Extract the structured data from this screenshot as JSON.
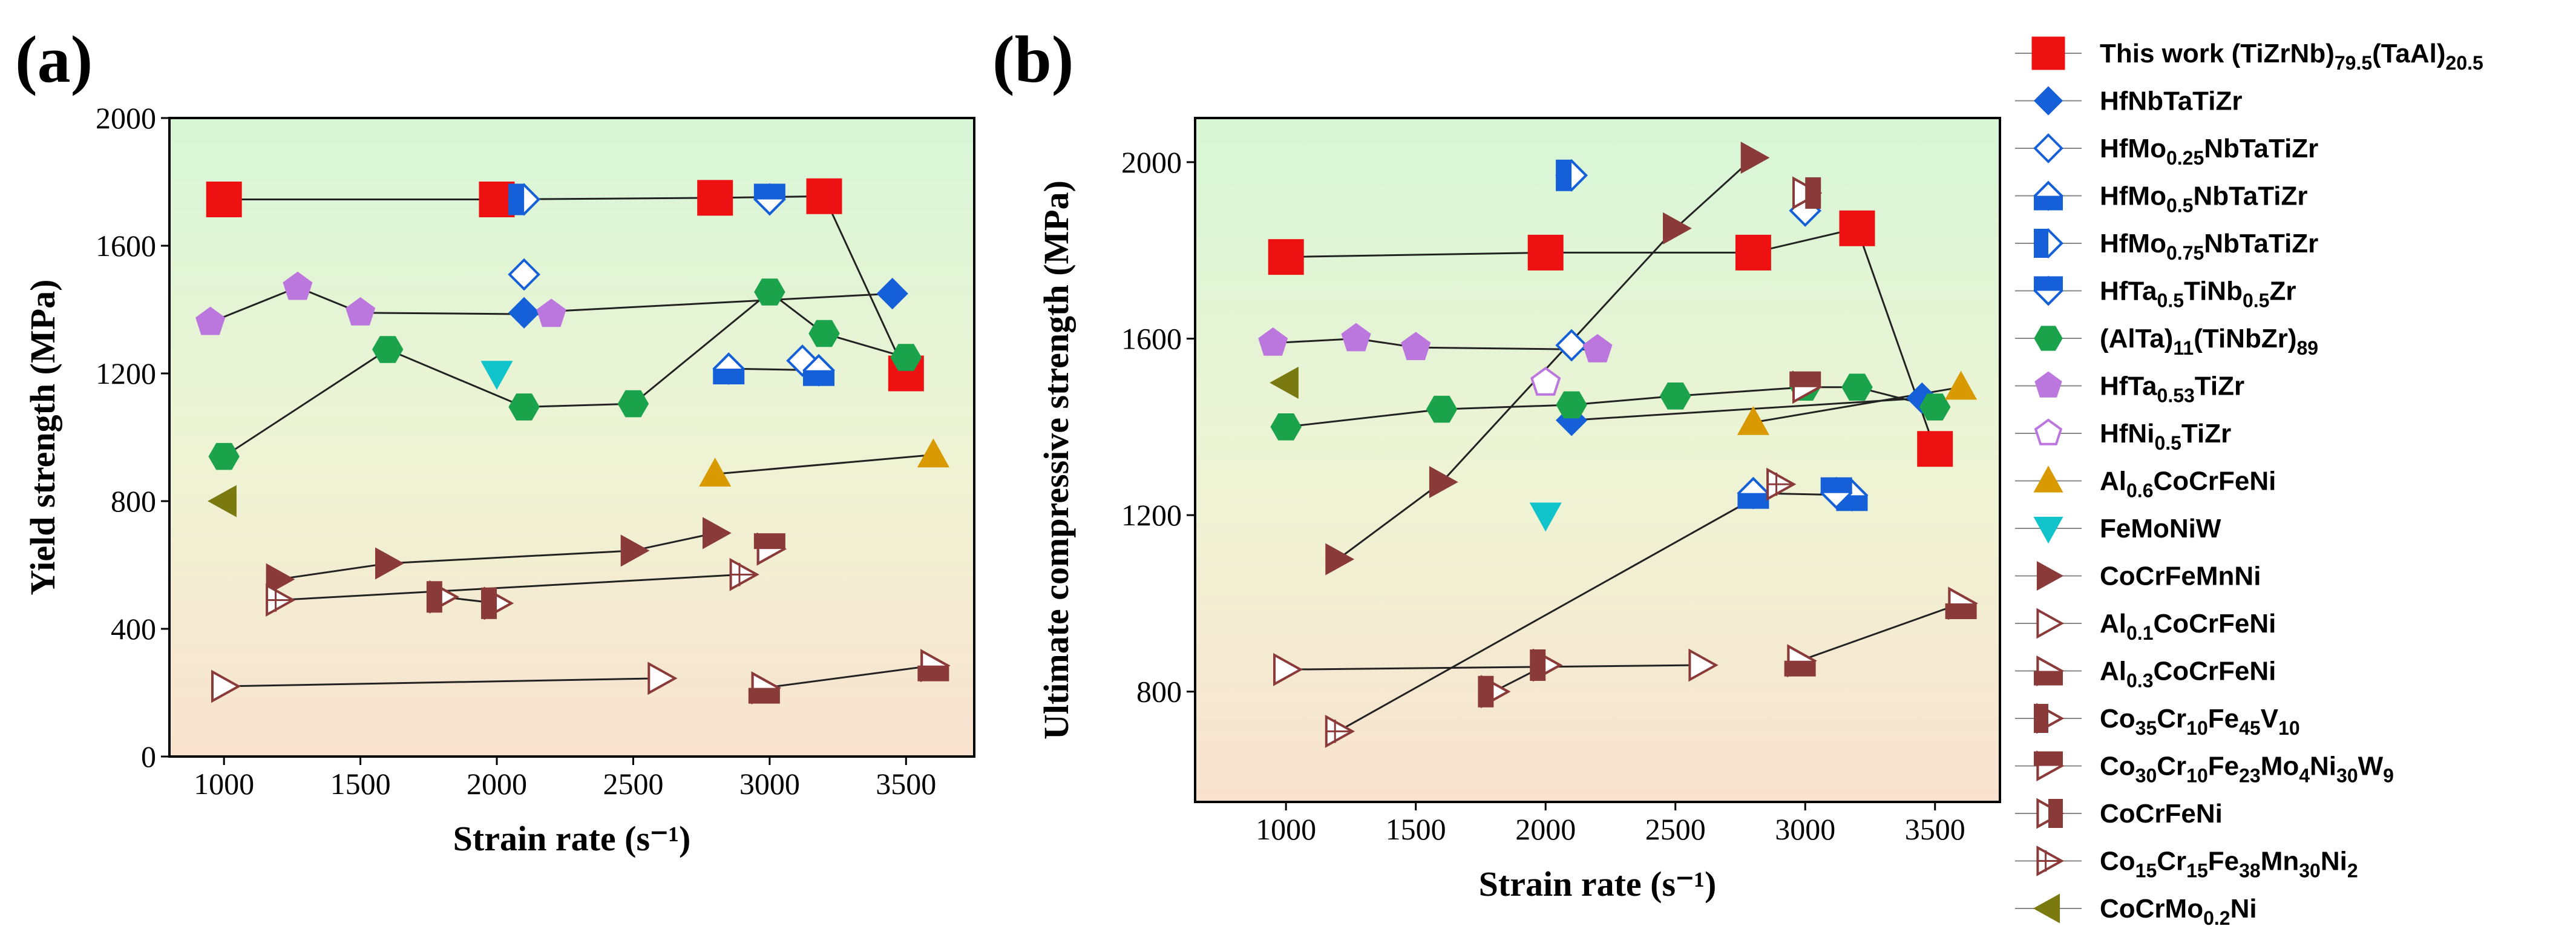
{
  "panels": {
    "a": "(a)",
    "b": "(b)"
  },
  "legend": [
    {
      "name": "This work (TiZrNb)79.5(TaAl)20.5",
      "parts": [
        [
          "This work (TiZrNb)",
          ""
        ],
        [
          "79.5",
          "sub"
        ],
        [
          "(TaAl)",
          ""
        ],
        [
          "20.5",
          "sub"
        ]
      ],
      "color": "#ee1111",
      "shape": "square",
      "fill": "solid"
    },
    {
      "name": "HfNbTaTiZr",
      "parts": [
        [
          "HfNbTaTiZr",
          ""
        ]
      ],
      "color": "#1560d8",
      "shape": "diamond",
      "fill": "solid"
    },
    {
      "name": "HfMo0.25NbTaTiZr",
      "parts": [
        [
          "HfMo",
          ""
        ],
        [
          "0.25",
          "sub"
        ],
        [
          "NbTaTiZr",
          ""
        ]
      ],
      "color": "#1560d8",
      "shape": "diamond",
      "fill": "open"
    },
    {
      "name": "HfMo0.5NbTaTiZr",
      "parts": [
        [
          "HfMo",
          ""
        ],
        [
          "0.5",
          "sub"
        ],
        [
          "NbTaTiZr",
          ""
        ]
      ],
      "color": "#1560d8",
      "shape": "diamond",
      "fill": "half-bottom"
    },
    {
      "name": "HfMo0.75NbTaTiZr",
      "parts": [
        [
          "HfMo",
          ""
        ],
        [
          "0.75",
          "sub"
        ],
        [
          "NbTaTiZr",
          ""
        ]
      ],
      "color": "#1560d8",
      "shape": "diamond",
      "fill": "half-left"
    },
    {
      "name": "HfTa0.5TiNb0.5Zr",
      "parts": [
        [
          "HfTa",
          ""
        ],
        [
          "0.5",
          "sub"
        ],
        [
          "TiNb",
          ""
        ],
        [
          "0.5",
          "sub"
        ],
        [
          "Zr",
          ""
        ]
      ],
      "color": "#1560d8",
      "shape": "diamond",
      "fill": "half-top"
    },
    {
      "name": "(AlTa)11(TiNbZr)89",
      "parts": [
        [
          "(AlTa)",
          ""
        ],
        [
          "11",
          "sub"
        ],
        [
          "(TiNbZr)",
          ""
        ],
        [
          "89",
          "sub"
        ]
      ],
      "color": "#1aa34a",
      "shape": "hexagon",
      "fill": "solid"
    },
    {
      "name": "HfTa0.53TiZr",
      "parts": [
        [
          "HfTa",
          ""
        ],
        [
          "0.53",
          "sub"
        ],
        [
          "TiZr",
          ""
        ]
      ],
      "color": "#bb77dd",
      "shape": "pentagon",
      "fill": "solid"
    },
    {
      "name": "HfNi0.5TiZr",
      "parts": [
        [
          "HfNi",
          ""
        ],
        [
          "0.5",
          "sub"
        ],
        [
          "TiZr",
          ""
        ]
      ],
      "color": "#bb77dd",
      "shape": "pentagon",
      "fill": "open"
    },
    {
      "name": "Al0.6CoCrFeNi",
      "parts": [
        [
          "Al",
          ""
        ],
        [
          "0.6",
          "sub"
        ],
        [
          "CoCrFeNi",
          ""
        ]
      ],
      "color": "#d89a00",
      "shape": "triangle-up",
      "fill": "solid"
    },
    {
      "name": "FeMoNiW",
      "parts": [
        [
          "FeMoNiW",
          ""
        ]
      ],
      "color": "#11c4cc",
      "shape": "triangle-down",
      "fill": "solid"
    },
    {
      "name": "CoCrFeMnNi",
      "parts": [
        [
          "CoCrFeMnNi",
          ""
        ]
      ],
      "color": "#8b3a3a",
      "shape": "triangle-right",
      "fill": "solid"
    },
    {
      "name": "Al0.1CoCrFeNi",
      "parts": [
        [
          "Al",
          ""
        ],
        [
          "0.1",
          "sub"
        ],
        [
          "CoCrFeNi",
          ""
        ]
      ],
      "color": "#8b3a3a",
      "shape": "triangle-right",
      "fill": "open"
    },
    {
      "name": "Al0.3CoCrFeNi",
      "parts": [
        [
          "Al",
          ""
        ],
        [
          "0.3",
          "sub"
        ],
        [
          "CoCrFeNi",
          ""
        ]
      ],
      "color": "#8b3a3a",
      "shape": "triangle-right",
      "fill": "half-bottom"
    },
    {
      "name": "Co35Cr10Fe45V10",
      "parts": [
        [
          "Co",
          ""
        ],
        [
          "35",
          "sub"
        ],
        [
          "Cr",
          ""
        ],
        [
          "10",
          "sub"
        ],
        [
          "Fe",
          ""
        ],
        [
          "45",
          "sub"
        ],
        [
          "V",
          ""
        ],
        [
          "10",
          "sub"
        ]
      ],
      "color": "#8b3a3a",
      "shape": "triangle-right",
      "fill": "half-left"
    },
    {
      "name": "Co30Cr10Fe23Mo4Ni30W9",
      "parts": [
        [
          "Co",
          ""
        ],
        [
          "30",
          "sub"
        ],
        [
          "Cr",
          ""
        ],
        [
          "10",
          "sub"
        ],
        [
          "Fe",
          ""
        ],
        [
          "23",
          "sub"
        ],
        [
          "Mo",
          ""
        ],
        [
          "4",
          "sub"
        ],
        [
          "Ni",
          ""
        ],
        [
          "30",
          "sub"
        ],
        [
          "W",
          ""
        ],
        [
          "9",
          "sub"
        ]
      ],
      "color": "#8b3a3a",
      "shape": "triangle-right",
      "fill": "half-top"
    },
    {
      "name": "CoCrFeNi",
      "parts": [
        [
          "CoCrFeNi",
          ""
        ]
      ],
      "color": "#8b3a3a",
      "shape": "triangle-right",
      "fill": "half-right"
    },
    {
      "name": "Co15Cr15Fe38Mn30Ni2",
      "parts": [
        [
          "Co",
          ""
        ],
        [
          "15",
          "sub"
        ],
        [
          "Cr",
          ""
        ],
        [
          "15",
          "sub"
        ],
        [
          "Fe",
          ""
        ],
        [
          "38",
          "sub"
        ],
        [
          "Mn",
          ""
        ],
        [
          "30",
          "sub"
        ],
        [
          "Ni",
          ""
        ],
        [
          "2",
          "sub"
        ]
      ],
      "color": "#8b3a3a",
      "shape": "triangle-right",
      "fill": "cross"
    },
    {
      "name": "CoCrMo0.2Ni",
      "parts": [
        [
          "CoCrMo",
          ""
        ],
        [
          "0.2",
          "sub"
        ],
        [
          "Ni",
          ""
        ]
      ],
      "color": "#7a7a10",
      "shape": "triangle-left",
      "fill": "solid"
    }
  ],
  "chart_data": [
    {
      "type": "scatter",
      "panel": "(a)",
      "xlabel": "Strain rate (s⁻¹)",
      "ylabel": "Yield strength (MPa)",
      "xlim": [
        800,
        3750
      ],
      "ylim": [
        0,
        2000
      ],
      "xticks": [
        1000,
        1500,
        2000,
        2500,
        3000,
        3500
      ],
      "yticks": [
        0,
        400,
        800,
        1200,
        1600,
        2000
      ],
      "background": "vertical gradient light green (top) to light peach (bottom)",
      "series": [
        {
          "name": "This work (TiZrNb)79.5(TaAl)20.5",
          "x": [
            1000,
            2000,
            2800,
            3200,
            3500
          ],
          "y": [
            1745,
            1745,
            1750,
            1755,
            1200
          ],
          "connect": true
        },
        {
          "name": "HfNbTaTiZr",
          "x": [
            2100,
            3450
          ],
          "y": [
            1390,
            1450
          ],
          "connect": true
        },
        {
          "name": "HfMo0.25NbTaTiZr",
          "x": [
            2100,
            3120
          ],
          "y": [
            1510,
            1240
          ],
          "connect": false
        },
        {
          "name": "HfMo0.5NbTaTiZr",
          "x": [
            2850,
            3180
          ],
          "y": [
            1215,
            1210
          ],
          "connect": true
        },
        {
          "name": "HfMo0.75NbTaTiZr",
          "x": [
            2100
          ],
          "y": [
            1745
          ],
          "connect": false
        },
        {
          "name": "HfTa0.5TiNb0.5Zr",
          "x": [
            3000
          ],
          "y": [
            1745
          ],
          "connect": false
        },
        {
          "name": "(AlTa)11(TiNbZr)89",
          "x": [
            1000,
            1600,
            2100,
            2500,
            3000,
            3200,
            3500
          ],
          "y": [
            940,
            1275,
            1095,
            1105,
            1455,
            1325,
            1250
          ],
          "connect": true
        },
        {
          "name": "HfTa0.53TiZr",
          "x": [
            950,
            1270,
            1500,
            2200
          ],
          "y": [
            1360,
            1470,
            1390,
            1385
          ],
          "connect": true
        },
        {
          "name": "HfNi0.5TiZr",
          "x": [],
          "y": [],
          "connect": false
        },
        {
          "name": "Al0.6CoCrFeNi",
          "x": [
            2800,
            3600
          ],
          "y": [
            885,
            945
          ],
          "connect": true
        },
        {
          "name": "FeMoNiW",
          "x": [
            2000
          ],
          "y": [
            1200
          ],
          "connect": false
        },
        {
          "name": "CoCrFeMnNi",
          "x": [
            1200,
            1600,
            2500,
            2800
          ],
          "y": [
            555,
            605,
            645,
            700
          ],
          "connect": true
        },
        {
          "name": "Al0.1CoCrFeNi",
          "x": [
            1000,
            2600
          ],
          "y": [
            220,
            245
          ],
          "connect": true
        },
        {
          "name": "Al0.3CoCrFeNi",
          "x": [
            2980,
            3600
          ],
          "y": [
            215,
            285
          ],
          "connect": true
        },
        {
          "name": "Co35Cr10Fe45V10",
          "x": [
            1800,
            2000
          ],
          "y": [
            500,
            480
          ],
          "connect": true
        },
        {
          "name": "Co30Cr10Fe23Mo4Ni30W9",
          "x": [
            3000
          ],
          "y": [
            650
          ],
          "connect": false
        },
        {
          "name": "CoCrFeNi",
          "x": [],
          "y": [],
          "connect": false
        },
        {
          "name": "Co15Cr15Fe38Mn30Ni2",
          "x": [
            1200,
            2900
          ],
          "y": [
            490,
            570
          ],
          "connect": true
        },
        {
          "name": "CoCrMo0.2Ni",
          "x": [
            1000
          ],
          "y": [
            800
          ],
          "connect": false
        }
      ]
    },
    {
      "type": "scatter",
      "panel": "(b)",
      "xlabel": "Strain rate (s⁻¹)",
      "ylabel": "Ultimate compressive strength (MPa)",
      "xlim": [
        650,
        3750
      ],
      "ylim": [
        550,
        2100
      ],
      "xticks": [
        1000,
        1500,
        2000,
        2500,
        3000,
        3500
      ],
      "yticks": [
        800,
        1200,
        1600,
        2000
      ],
      "background": "vertical gradient light green (top) to light peach (bottom)",
      "series": [
        {
          "name": "This work (TiZrNb)79.5(TaAl)20.5",
          "x": [
            1000,
            2000,
            2800,
            3200,
            3500
          ],
          "y": [
            1785,
            1795,
            1795,
            1850,
            1350
          ],
          "connect": true
        },
        {
          "name": "HfNbTaTiZr",
          "x": [
            2100,
            3450
          ],
          "y": [
            1415,
            1465
          ],
          "connect": true
        },
        {
          "name": "HfMo0.25NbTaTiZr",
          "x": [
            2100,
            3000
          ],
          "y": [
            1585,
            1890
          ],
          "connect": false
        },
        {
          "name": "HfMo0.5NbTaTiZr",
          "x": [
            2800,
            3180
          ],
          "y": [
            1250,
            1245
          ],
          "connect": true
        },
        {
          "name": "HfMo0.75NbTaTiZr",
          "x": [
            2100
          ],
          "y": [
            1970
          ],
          "connect": false
        },
        {
          "name": "HfTa0.5TiNb0.5Zr",
          "x": [
            3120
          ],
          "y": [
            1250
          ],
          "connect": false
        },
        {
          "name": "(AlTa)11(TiNbZr)89",
          "x": [
            1000,
            1600,
            2100,
            2500,
            3000,
            3200,
            3500
          ],
          "y": [
            1400,
            1440,
            1450,
            1470,
            1490,
            1490,
            1445
          ],
          "connect": true
        },
        {
          "name": "HfTa0.53TiZr",
          "x": [
            950,
            1270,
            1500,
            2200
          ],
          "y": [
            1590,
            1600,
            1580,
            1575
          ],
          "connect": true
        },
        {
          "name": "HfNi0.5TiZr",
          "x": [
            2000
          ],
          "y": [
            1500
          ],
          "connect": false
        },
        {
          "name": "Al0.6CoCrFeNi",
          "x": [
            2800,
            3600
          ],
          "y": [
            1410,
            1490
          ],
          "connect": true
        },
        {
          "name": "FeMoNiW",
          "x": [
            2000
          ],
          "y": [
            1200
          ],
          "connect": false
        },
        {
          "name": "CoCrFeMnNi",
          "x": [
            1200,
            1600,
            2500,
            2800
          ],
          "y": [
            1100,
            1275,
            1850,
            2010
          ],
          "connect": true
        },
        {
          "name": "Al0.1CoCrFeNi",
          "x": [
            1000,
            2600
          ],
          "y": [
            850,
            860
          ],
          "connect": true
        },
        {
          "name": "Al0.3CoCrFeNi",
          "x": [
            2980,
            3600
          ],
          "y": [
            870,
            1000
          ],
          "connect": true
        },
        {
          "name": "Co35Cr10Fe45V10",
          "x": [
            1800,
            2000
          ],
          "y": [
            800,
            860
          ],
          "connect": true
        },
        {
          "name": "Co30Cr10Fe23Mo4Ni30W9",
          "x": [
            3000
          ],
          "y": [
            1490
          ],
          "connect": false
        },
        {
          "name": "CoCrFeNi",
          "x": [
            3000
          ],
          "y": [
            1930
          ],
          "connect": false
        },
        {
          "name": "Co15Cr15Fe38Mn30Ni2",
          "x": [
            1200,
            2900
          ],
          "y": [
            710,
            1270
          ],
          "connect": true
        },
        {
          "name": "CoCrMo0.2Ni",
          "x": [
            1000
          ],
          "y": [
            1500
          ],
          "connect": false
        }
      ]
    }
  ]
}
